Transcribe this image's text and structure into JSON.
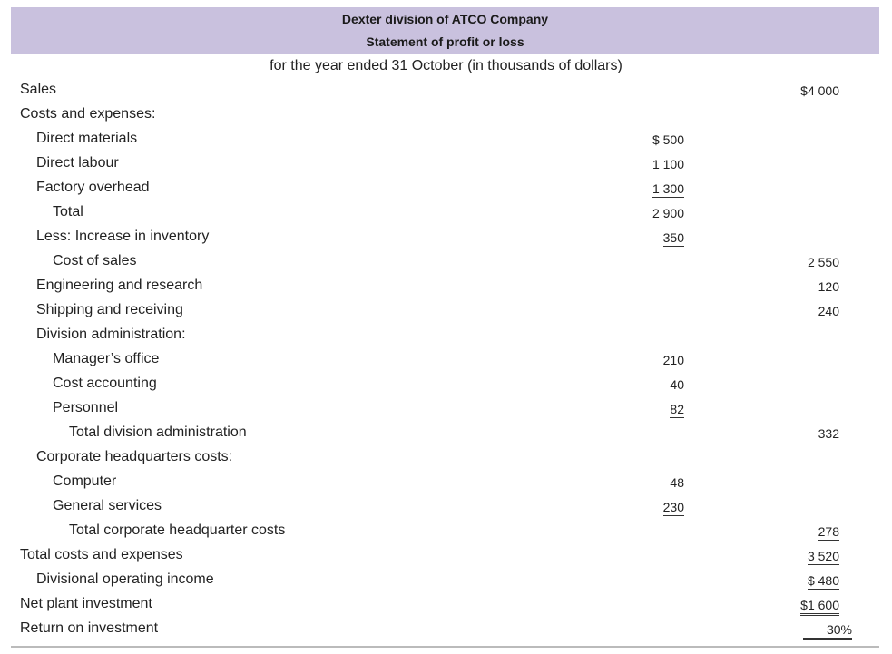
{
  "header": {
    "title": "Dexter division of ATCO Company",
    "subtitle": "Statement of profit or loss",
    "period": "for the year ended 31 October (in thousands of dollars)"
  },
  "rows": [
    {
      "label": "Sales",
      "c2": "$4 000"
    },
    {
      "label": "Costs and expenses:"
    },
    {
      "label": "Direct materials",
      "c1": "$  500"
    },
    {
      "label": "Direct labour",
      "c1": "1 100"
    },
    {
      "label": "Factory overhead",
      "c1": "1 300"
    },
    {
      "label": "Total",
      "c1": "2 900"
    },
    {
      "label": "Less: Increase in inventory",
      "c1": "350"
    },
    {
      "label": "Cost of sales",
      "c2": "2 550"
    },
    {
      "label": "Engineering and research",
      "c2": "120"
    },
    {
      "label": "Shipping and receiving",
      "c2": "240"
    },
    {
      "label": "Division administration:"
    },
    {
      "label": "Manager’s office",
      "c1": "210"
    },
    {
      "label": "Cost accounting",
      "c1": "40"
    },
    {
      "label": "Personnel",
      "c1": "82"
    },
    {
      "label": "Total division administration",
      "c2": "332"
    },
    {
      "label": "Corporate headquarters costs:"
    },
    {
      "label": "Computer",
      "c1": "48"
    },
    {
      "label": "General services",
      "c1": "230"
    },
    {
      "label": "Total corporate headquarter costs",
      "c2": "278"
    },
    {
      "label": "Total costs and expenses",
      "c2": "3 520"
    },
    {
      "label": "Divisional operating income",
      "c2": "$  480"
    },
    {
      "label": "Net plant investment",
      "c2": "$1 600"
    },
    {
      "label": "Return on investment",
      "c2": "30%"
    }
  ]
}
